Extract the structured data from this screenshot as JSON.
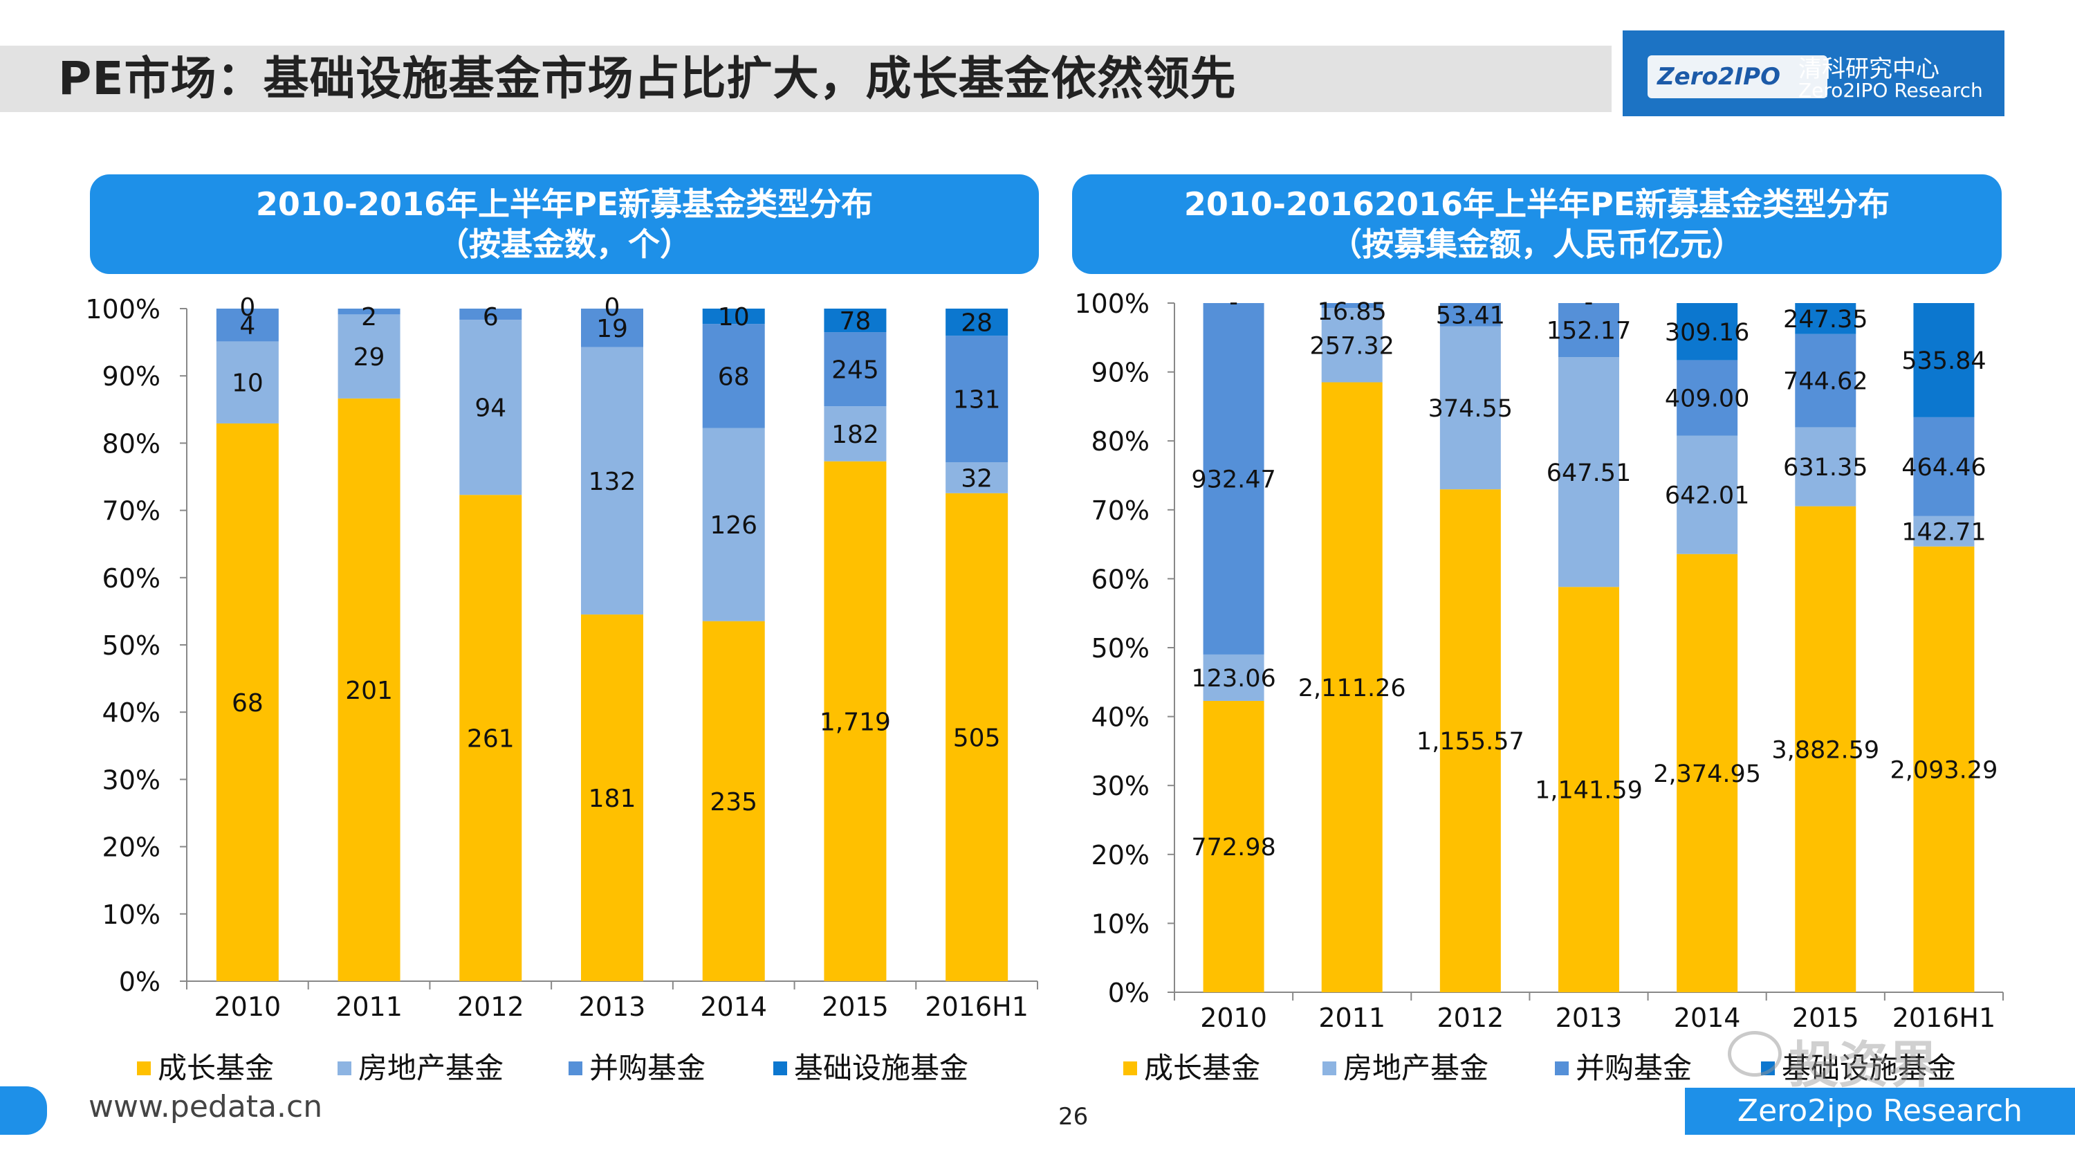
{
  "slide": {
    "title": "PE市场：基础设施基金市场占比扩大，成长基金依然领先",
    "logo_badge": "Zero2IPO",
    "logo_cn": "清科研究中心",
    "logo_en": "Zero2IPO Research",
    "footer_url": "www.pedata.cn",
    "page_number": "26",
    "footer_brand": "Zero2ipo Research",
    "watermark_text": "投资界"
  },
  "legend": [
    "成长基金",
    "房地产基金",
    "并购基金",
    "基础设施基金"
  ],
  "colors": {
    "growth": "#ffc000",
    "realestate": "#8db4e2",
    "ma": "#5590d8",
    "infra": "#0c77cf",
    "header": "#1e90e8"
  },
  "chart_data": [
    {
      "type": "bar",
      "stacked": "percent",
      "title": "2010-2016年上半年PE新募基金类型分布",
      "subtitle": "（按基金数，个）",
      "categories": [
        "2010",
        "2011",
        "2012",
        "2013",
        "2014",
        "2015",
        "2016H1"
      ],
      "yticks": [
        "0%",
        "10%",
        "20%",
        "30%",
        "40%",
        "50%",
        "60%",
        "70%",
        "80%",
        "90%",
        "100%"
      ],
      "ylim": [
        0,
        100
      ],
      "series": [
        {
          "name": "成长基金",
          "values": [
            68,
            201,
            261,
            181,
            235,
            1719,
            505
          ],
          "labels": [
            "68",
            "201",
            "261",
            "181",
            "235",
            "1,719",
            "505"
          ]
        },
        {
          "name": "房地产基金",
          "values": [
            10,
            29,
            94,
            132,
            126,
            182,
            32
          ],
          "labels": [
            "10",
            "29",
            "94",
            "132",
            "126",
            "182",
            "32"
          ]
        },
        {
          "name": "并购基金",
          "values": [
            4,
            2,
            6,
            19,
            68,
            245,
            131
          ],
          "labels": [
            "4",
            "2",
            "6",
            "19",
            "68",
            "245",
            "131"
          ]
        },
        {
          "name": "基础设施基金",
          "values": [
            0,
            0,
            0,
            0,
            10,
            78,
            28
          ],
          "labels": [
            "0",
            "",
            "",
            "0",
            "10",
            "78",
            "28"
          ]
        }
      ]
    },
    {
      "type": "bar",
      "stacked": "percent",
      "title": "2010-20162016年上半年PE新募基金类型分布",
      "subtitle": "（按募集金额，人民币亿元）",
      "categories": [
        "2010",
        "2011",
        "2012",
        "2013",
        "2014",
        "2015",
        "2016H1"
      ],
      "yticks": [
        "0%",
        "10%",
        "20%",
        "30%",
        "40%",
        "50%",
        "60%",
        "70%",
        "80%",
        "90%",
        "100%"
      ],
      "ylim": [
        0,
        100
      ],
      "series": [
        {
          "name": "成长基金",
          "values": [
            772.98,
            2111.26,
            1155.57,
            1141.59,
            2374.95,
            3882.59,
            2093.29
          ],
          "labels": [
            "772.98",
            "2,111.26",
            "1,155.57",
            "1,141.59",
            "2,374.95",
            "3,882.59",
            "2,093.29"
          ]
        },
        {
          "name": "房地产基金",
          "values": [
            123.06,
            257.32,
            374.55,
            647.51,
            642.01,
            631.35,
            142.71
          ],
          "labels": [
            "123.06",
            "257.32",
            "374.55",
            "647.51",
            "642.01",
            "631.35",
            "142.71"
          ]
        },
        {
          "name": "并购基金",
          "values": [
            932.47,
            16.85,
            53.41,
            152.17,
            409.0,
            744.62,
            464.46
          ],
          "labels": [
            "932.47",
            "16.85",
            "53.41",
            "152.17",
            "409.00",
            "744.62",
            "464.46"
          ]
        },
        {
          "name": "基础设施基金",
          "values": [
            0,
            0,
            0,
            0,
            309.16,
            247.35,
            535.84
          ],
          "labels": [
            "-",
            "",
            "",
            "-",
            "309.16",
            "247.35",
            "535.84"
          ]
        }
      ]
    }
  ]
}
